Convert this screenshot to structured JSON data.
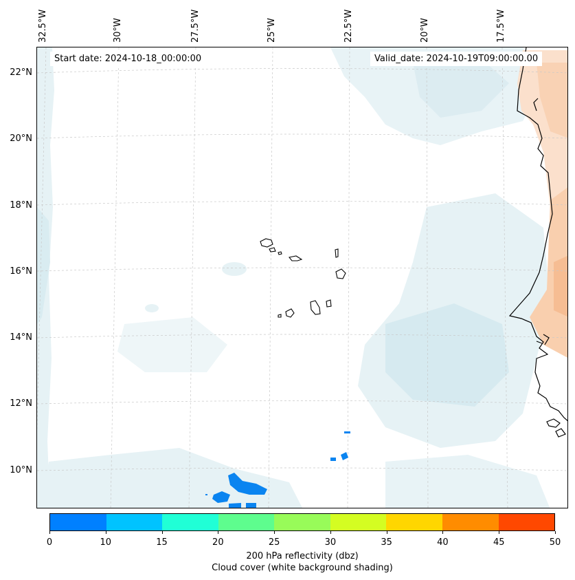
{
  "map": {
    "start_date": "Start date: 2024-10-18_00:00:00",
    "valid_date": "Valid_date: 2024-10-19T09:00:00.00",
    "lon_ticks": [
      "32.5°W",
      "30°W",
      "27.5°W",
      "25°W",
      "22.5°W",
      "20°W",
      "17.5°W"
    ],
    "lat_ticks": [
      "22°N",
      "20°N",
      "18°N",
      "16°N",
      "14°N",
      "12°N",
      "10°N"
    ],
    "features": {
      "islands": "Cape Verde islands",
      "coastline": "West African coastline",
      "reflectivity_cells": "200 hPa reflectivity cells (0-10 dbz)"
    }
  },
  "colorbar": {
    "label_line1": "200 hPa reflectivity (dbz)",
    "label_line2": "Cloud cover (white background shading)",
    "ticks": [
      "0",
      "10",
      "15",
      "20",
      "25",
      "30",
      "35",
      "40",
      "45",
      "50"
    ],
    "colors": [
      "#0080ff",
      "#00c3ff",
      "#20ffd6",
      "#5efd8e",
      "#98fb59",
      "#d4fd22",
      "#ffd600",
      "#ff8c00",
      "#ff4800"
    ]
  },
  "colors": {
    "cloud_light": "#e6f2f5",
    "cloud_mid": "#d4e9ef",
    "land_heat_light": "#fbe0cc",
    "land_heat_mid": "#f8c9a6",
    "reflectivity": "#0a84f0",
    "grid": "#c8c8c8"
  }
}
